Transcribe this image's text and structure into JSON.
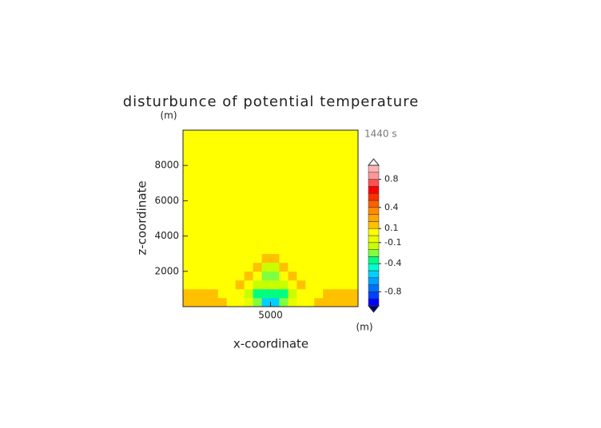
{
  "chart_data": {
    "type": "contour",
    "title": "disturbunce of potential temperature",
    "time_label": "1440 s",
    "xlabel": "x-coordinate",
    "ylabel": "z-coordinate",
    "x_unit": "(m)",
    "y_unit": "(m)",
    "xlim": [
      0,
      10000
    ],
    "ylim": [
      0,
      10000
    ],
    "xticks": [
      5000
    ],
    "yticks": [
      2000,
      4000,
      6000,
      8000
    ],
    "x": [
      250,
      750,
      1250,
      1750,
      2250,
      2750,
      3250,
      3750,
      4250,
      4750,
      5250,
      5750,
      6250,
      6750,
      7250,
      7750,
      8250,
      8750,
      9250,
      9750
    ],
    "y": [
      250,
      750,
      1250,
      1750,
      2250,
      2750,
      3250,
      3750,
      4250,
      4750,
      5250,
      5750,
      6250,
      6750,
      7250,
      7750,
      8250,
      8750,
      9250,
      9750
    ],
    "z": [
      [
        0.15,
        0.15,
        0.15,
        0.15,
        0.1,
        0,
        0,
        -0.1,
        -0.3,
        -0.6,
        -0.6,
        -0.3,
        -0.1,
        0,
        0,
        0.1,
        0.15,
        0.15,
        0.15,
        0.15
      ],
      [
        0.15,
        0.15,
        0.15,
        0.1,
        0,
        0,
        0,
        -0.2,
        -0.4,
        -0.4,
        -0.4,
        -0.4,
        -0.2,
        0,
        0,
        0,
        0.1,
        0.15,
        0.15,
        0.15
      ],
      [
        0,
        0,
        0,
        0,
        0,
        0,
        0.15,
        0,
        -0.2,
        -0.2,
        -0.2,
        -0.2,
        0,
        0.15,
        0,
        0,
        0,
        0,
        0,
        0
      ],
      [
        0,
        0,
        0,
        0,
        0,
        0,
        0,
        0.15,
        0,
        -0.3,
        -0.3,
        0,
        0.15,
        0,
        0,
        0,
        0,
        0,
        0,
        0
      ],
      [
        0,
        0,
        0,
        0,
        0,
        0,
        0,
        0,
        0.15,
        -0.2,
        -0.2,
        0.15,
        0,
        0,
        0,
        0,
        0,
        0,
        0,
        0
      ],
      [
        0,
        0,
        0,
        0,
        0,
        0,
        0,
        0,
        0,
        0.15,
        0.15,
        0,
        0,
        0,
        0,
        0,
        0,
        0,
        0,
        0
      ],
      [
        0,
        0,
        0,
        0,
        0,
        0,
        0,
        0,
        0,
        0,
        0,
        0,
        0,
        0,
        0,
        0,
        0,
        0,
        0,
        0
      ],
      [
        0,
        0,
        0,
        0,
        0,
        0,
        0,
        0,
        0,
        0,
        0,
        0,
        0,
        0,
        0,
        0,
        0,
        0,
        0,
        0
      ],
      [
        0,
        0,
        0,
        0,
        0,
        0,
        0,
        0,
        0,
        0,
        0,
        0,
        0,
        0,
        0,
        0,
        0,
        0,
        0,
        0
      ],
      [
        0,
        0,
        0,
        0,
        0,
        0,
        0,
        0,
        0,
        0,
        0,
        0,
        0,
        0,
        0,
        0,
        0,
        0,
        0,
        0
      ],
      [
        0,
        0,
        0,
        0,
        0,
        0,
        0,
        0,
        0,
        0,
        0,
        0,
        0,
        0,
        0,
        0,
        0,
        0,
        0,
        0
      ],
      [
        0,
        0,
        0,
        0,
        0,
        0,
        0,
        0,
        0,
        0,
        0,
        0,
        0,
        0,
        0,
        0,
        0,
        0,
        0,
        0
      ],
      [
        0,
        0,
        0,
        0,
        0,
        0,
        0,
        0,
        0,
        0,
        0,
        0,
        0,
        0,
        0,
        0,
        0,
        0,
        0,
        0
      ],
      [
        0,
        0,
        0,
        0,
        0,
        0,
        0,
        0,
        0,
        0,
        0,
        0,
        0,
        0,
        0,
        0,
        0,
        0,
        0,
        0
      ],
      [
        0,
        0,
        0,
        0,
        0,
        0,
        0,
        0,
        0,
        0,
        0,
        0,
        0,
        0,
        0,
        0,
        0,
        0,
        0,
        0
      ],
      [
        0,
        0,
        0,
        0,
        0,
        0,
        0,
        0,
        0,
        0,
        0,
        0,
        0,
        0,
        0,
        0,
        0,
        0,
        0,
        0
      ],
      [
        0,
        0,
        0,
        0,
        0,
        0,
        0,
        0,
        0,
        0,
        0,
        0,
        0,
        0,
        0,
        0,
        0,
        0,
        0,
        0
      ],
      [
        0,
        0,
        0,
        0,
        0,
        0,
        0,
        0,
        0,
        0,
        0,
        0,
        0,
        0,
        0,
        0,
        0,
        0,
        0,
        0
      ],
      [
        0,
        0,
        0,
        0,
        0,
        0,
        0,
        0,
        0,
        0,
        0,
        0,
        0,
        0,
        0,
        0,
        0,
        0,
        0,
        0
      ],
      [
        0,
        0,
        0,
        0,
        0,
        0,
        0,
        0,
        0,
        0,
        0,
        0,
        0,
        0,
        0,
        0,
        0,
        0,
        0,
        0
      ]
    ],
    "levels": [
      -1.0,
      -0.9,
      -0.8,
      -0.7,
      -0.6,
      -0.5,
      -0.4,
      -0.3,
      -0.2,
      -0.1,
      0,
      0.1,
      0.2,
      0.3,
      0.4,
      0.5,
      0.6,
      0.7,
      0.8,
      0.9,
      1.0
    ],
    "colors": [
      "#0000ff",
      "#0040ff",
      "#0070ff",
      "#00a0ff",
      "#00d0ff",
      "#00ffd0",
      "#00ff80",
      "#80ff40",
      "#c8ff00",
      "#e6ff00",
      "#ffff00",
      "#ffc000",
      "#ffa500",
      "#ff8c00",
      "#ff6000",
      "#ff3000",
      "#ff0000",
      "#ff5050",
      "#ff9696",
      "#ffb4b4"
    ],
    "colorbar_ticks": [
      -0.8,
      -0.4,
      -0.1,
      0.1,
      0.4,
      0.8
    ]
  }
}
